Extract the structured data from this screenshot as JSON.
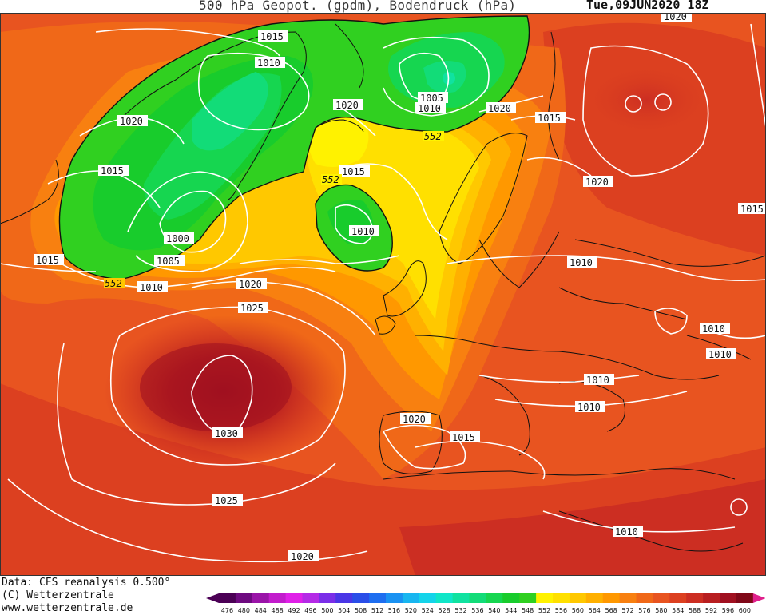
{
  "header": {
    "title": "500 hPa Geopot. (gpdm), Bodendruck (hPa)",
    "datetime": "Tue,09JUN2020 18Z"
  },
  "footer": {
    "data_source": "Data: CFS reanalysis 0.500°",
    "copyright": "(C) Wetterzentrale",
    "website": "www.wetterzentrale.de"
  },
  "colorbar": {
    "units": "gpdm",
    "levels": [
      "476",
      "480",
      "484",
      "488",
      "492",
      "496",
      "500",
      "504",
      "508",
      "512",
      "516",
      "520",
      "524",
      "528",
      "532",
      "536",
      "540",
      "544",
      "548",
      "552",
      "556",
      "560",
      "564",
      "568",
      "572",
      "576",
      "580",
      "584",
      "588",
      "592",
      "596",
      "600"
    ],
    "colors": [
      "#4b0055",
      "#6e0a80",
      "#9a14a8",
      "#c21ccc",
      "#e020e8",
      "#b42ae6",
      "#7a2ee8",
      "#4a36e6",
      "#2a4ee8",
      "#1e6ef0",
      "#1a92f2",
      "#18b6f0",
      "#14d4ea",
      "#10e6c8",
      "#10e2a0",
      "#12dc78",
      "#16d650",
      "#18cc2c",
      "#30d020",
      "#fff200",
      "#ffe000",
      "#ffc800",
      "#ffb000",
      "#ff9800",
      "#f88010",
      "#f06818",
      "#e85420",
      "#dc4020",
      "#cc2e22",
      "#b81e20",
      "#a01020",
      "#800818"
    ]
  },
  "isobar_labels": {
    "pressure": [
      "1015",
      "1010",
      "1020",
      "1015",
      "1000",
      "1005",
      "1010",
      "1015",
      "1020",
      "1025",
      "1030",
      "1025",
      "1020",
      "1020",
      "1005",
      "1010",
      "1020",
      "1015",
      "1015",
      "1010",
      "1020",
      "1020",
      "1015",
      "1010",
      "1010",
      "1010",
      "1010",
      "1010",
      "1020",
      "1015",
      "1010"
    ],
    "geopotential": [
      "552",
      "552",
      "552"
    ]
  }
}
